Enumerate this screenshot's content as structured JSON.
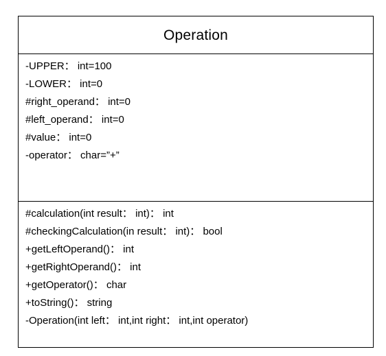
{
  "class_box": {
    "name": "Operation",
    "attributes": [
      "-UPPER： int=100",
      "-LOWER： int=0",
      "#right_operand： int=0",
      "#left_operand： int=0",
      "#value： int=0",
      "-operator： char=”+”"
    ],
    "operations": [
      "#calculation(int result： int)： int",
      "#checkingCalculation(in result： int)： bool",
      "+getLeftOperand()： int",
      "+getRightOperand()： int",
      "+getOperator()： char",
      "+toString()： string",
      "-Operation(int left： int,int right： int,int operator)"
    ]
  }
}
